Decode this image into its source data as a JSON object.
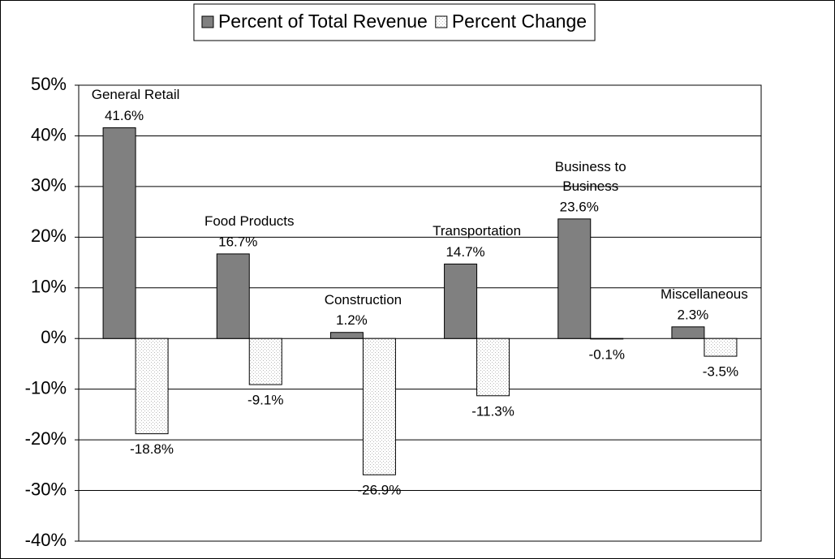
{
  "chart_data": {
    "type": "bar",
    "categories": [
      "General Retail",
      "Food Products",
      "Construction",
      "Transportation",
      "Business to Business",
      "Miscellaneous"
    ],
    "series": [
      {
        "name": "Percent of Total Revenue",
        "color": "#808080",
        "values": [
          41.6,
          16.7,
          1.2,
          14.7,
          23.6,
          2.3
        ],
        "value_labels": [
          "41.6%",
          "16.7%",
          "1.2%",
          "14.7%",
          "23.6%",
          "2.3%"
        ]
      },
      {
        "name": "Percent Change",
        "color": "#ffffff",
        "values": [
          -18.8,
          -9.1,
          -26.9,
          -11.3,
          -0.1,
          -3.5
        ],
        "value_labels": [
          "-18.8%",
          "-9.1%",
          "-26.9%",
          "-11.3%",
          "-0.1%",
          "-3.5%"
        ]
      }
    ],
    "ylim": [
      -40,
      50
    ],
    "yticks": [
      {
        "value": -40,
        "label": "-40%"
      },
      {
        "value": -30,
        "label": "-30%"
      },
      {
        "value": -20,
        "label": "-20%"
      },
      {
        "value": -10,
        "label": "-10%"
      },
      {
        "value": 0,
        "label": "0%"
      },
      {
        "value": 10,
        "label": "10%"
      },
      {
        "value": 20,
        "label": "20%"
      },
      {
        "value": 30,
        "label": "30%"
      },
      {
        "value": 40,
        "label": "40%"
      },
      {
        "value": 50,
        "label": "50%"
      }
    ],
    "grid": true,
    "legend": "top"
  }
}
